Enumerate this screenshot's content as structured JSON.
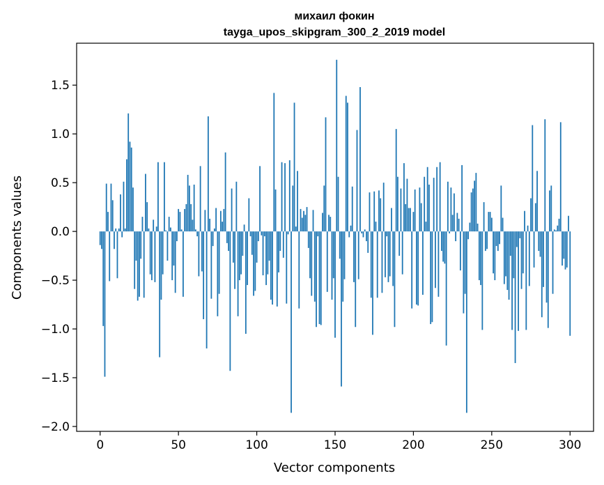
{
  "chart_data": {
    "type": "bar",
    "title_line1": "михаил фокин",
    "title_line2": "tayga_upos_skipgram_300_2_2019 model",
    "xlabel": "Vector components",
    "ylabel": "Components values",
    "xlim": [
      -15,
      315
    ],
    "ylim": [
      -2.05,
      1.93
    ],
    "xticks": [
      0,
      50,
      100,
      150,
      200,
      250,
      300
    ],
    "yticks": [
      -2.0,
      -1.5,
      -1.0,
      -0.5,
      0.0,
      0.5,
      1.0,
      1.5
    ],
    "ytick_labels": [
      "−2.0",
      "−1.5",
      "−1.0",
      "−0.5",
      "0.0",
      "0.5",
      "1.0",
      "1.5"
    ],
    "bar_color": "#1f77b4",
    "grid": false,
    "legend": "none",
    "values": [
      -0.14,
      -0.18,
      -0.97,
      -1.49,
      0.49,
      0.2,
      -0.51,
      0.49,
      0.32,
      -0.18,
      0.03,
      -0.48,
      0.03,
      0.38,
      -0.06,
      0.51,
      0.03,
      0.74,
      1.21,
      0.92,
      0.86,
      0.45,
      -0.59,
      -0.3,
      -0.71,
      -0.67,
      -0.28,
      0.15,
      -0.68,
      0.59,
      0.3,
      0.03,
      -0.44,
      -0.5,
      0.12,
      -0.52,
      0.05,
      0.71,
      -1.29,
      -0.7,
      -0.44,
      0.71,
      0.01,
      -0.3,
      0.15,
      0.04,
      -0.5,
      -0.35,
      -0.63,
      -0.1,
      0.23,
      0.2,
      0.02,
      -0.67,
      0.23,
      0.28,
      0.58,
      0.47,
      0.28,
      0.12,
      0.48,
      0.02,
      -0.05,
      -0.46,
      0.67,
      -0.41,
      -0.9,
      0.22,
      -1.2,
      1.18,
      0.13,
      -0.69,
      -0.15,
      0.03,
      0.24,
      -0.87,
      -0.64,
      0.21,
      0.1,
      0.23,
      0.81,
      -0.12,
      -0.2,
      -1.43,
      0.44,
      -0.32,
      -0.59,
      0.51,
      -0.87,
      -0.5,
      -0.44,
      -0.25,
      0.07,
      -1.05,
      -0.55,
      0.34,
      -0.05,
      -0.24,
      -0.66,
      -0.61,
      -0.32,
      -0.1,
      0.67,
      -0.04,
      -0.45,
      -0.05,
      -0.55,
      -0.44,
      -0.3,
      -0.7,
      -0.75,
      1.42,
      0.43,
      -0.77,
      -0.42,
      -0.2,
      0.71,
      -0.27,
      0.7,
      -0.74,
      -0.03,
      0.73,
      -1.86,
      0.47,
      1.32,
      0.05,
      0.62,
      -0.79,
      0.23,
      0.14,
      0.21,
      0.17,
      0.25,
      -0.17,
      -0.48,
      -0.66,
      0.22,
      -0.72,
      -0.98,
      -0.05,
      -0.95,
      -0.96,
      0.19,
      0.47,
      1.17,
      -0.62,
      0.17,
      0.15,
      -0.7,
      -0.48,
      -1.09,
      1.76,
      0.56,
      -0.28,
      -1.59,
      -0.72,
      -0.49,
      1.39,
      1.32,
      -0.06,
      0.06,
      0.46,
      -0.52,
      -0.98,
      1.04,
      -0.49,
      1.48,
      -0.02,
      -0.06,
      0.02,
      -0.1,
      -0.22,
      0.4,
      -0.68,
      -1.06,
      0.41,
      0.1,
      -0.68,
      0.42,
      0.34,
      -0.63,
      0.5,
      -0.47,
      -0.05,
      -0.52,
      -0.46,
      0.24,
      -0.56,
      -0.98,
      1.05,
      0.56,
      -0.25,
      0.44,
      -0.44,
      0.7,
      0.28,
      0.54,
      0.24,
      0.24,
      -0.79,
      0.2,
      0.43,
      -0.75,
      -0.76,
      0.45,
      0.29,
      -0.65,
      0.56,
      0.1,
      0.66,
      0.48,
      -0.95,
      -0.93,
      0.55,
      -0.58,
      0.66,
      -0.67,
      0.71,
      -0.2,
      -0.31,
      -0.33,
      -1.17,
      0.51,
      -0.02,
      0.45,
      0.17,
      0.39,
      -0.1,
      0.19,
      0.13,
      -0.4,
      0.68,
      -0.84,
      -0.64,
      -1.86,
      -0.08,
      0.09,
      0.4,
      0.44,
      0.52,
      0.6,
      0.08,
      -0.5,
      -0.55,
      -1.01,
      0.3,
      -0.2,
      -0.18,
      0.2,
      0.2,
      0.14,
      -0.43,
      -0.5,
      -0.15,
      -0.2,
      -0.13,
      0.47,
      0.14,
      -0.54,
      -0.46,
      -0.6,
      -0.7,
      -0.25,
      -1.01,
      -0.48,
      -1.35,
      -0.16,
      -1.02,
      -0.07,
      -0.59,
      -0.43,
      0.21,
      -1.01,
      0.06,
      -0.56,
      0.34,
      1.09,
      -0.37,
      0.29,
      0.62,
      -0.2,
      -0.26,
      -0.88,
      -0.57,
      1.15,
      -0.73,
      -0.99,
      0.42,
      0.47,
      -0.64,
      0.02,
      0.01,
      0.06,
      0.13,
      1.12,
      -0.35,
      -0.28,
      -0.39,
      -0.37,
      0.16,
      -1.07
    ]
  }
}
